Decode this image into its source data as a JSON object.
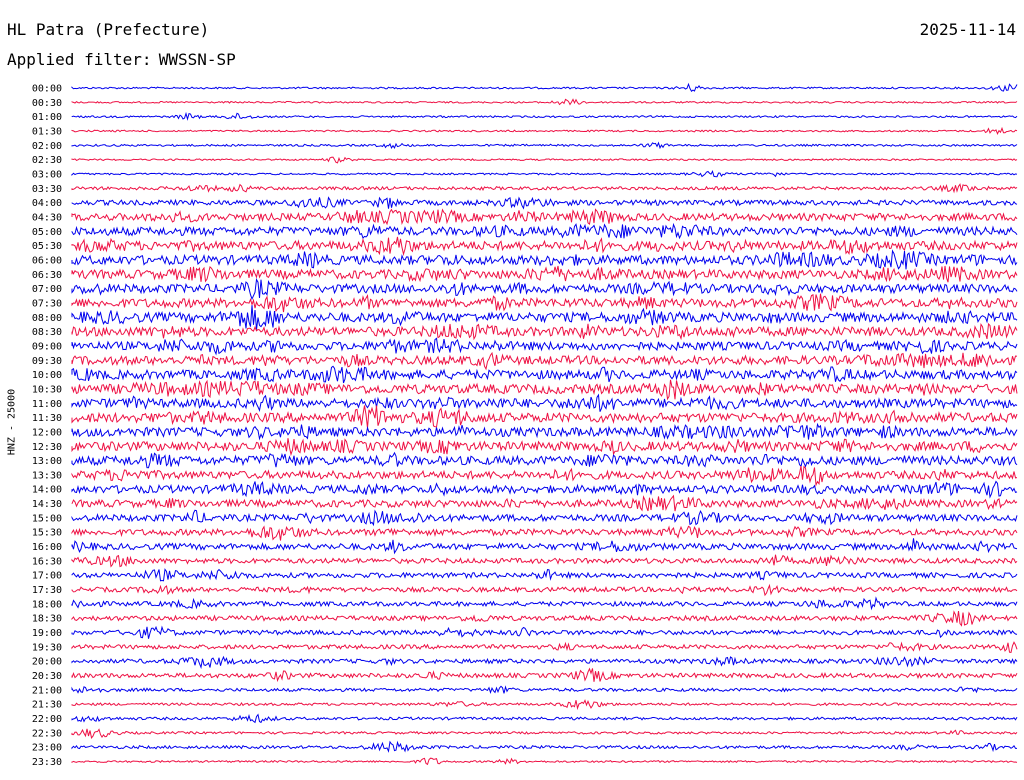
{
  "header": {
    "station_title": "HL Patra (Prefecture)",
    "date": "2025-11-14",
    "filter_label": "Applied filter:",
    "filter_value": "WWSSN-SP"
  },
  "chart_data": {
    "type": "line",
    "title": "HL Patra (Prefecture)",
    "ylabel": "HNZ - 25000",
    "line_colors": [
      "#0000ee",
      "#ee1144"
    ],
    "grid": false,
    "legend": "none",
    "rows": [
      {
        "label": "00:00",
        "activity": 0.05
      },
      {
        "label": "00:30",
        "activity": 0.04
      },
      {
        "label": "01:00",
        "activity": 0.06
      },
      {
        "label": "01:30",
        "activity": 0.04
      },
      {
        "label": "02:00",
        "activity": 0.07
      },
      {
        "label": "02:30",
        "activity": 0.04
      },
      {
        "label": "03:00",
        "activity": 0.05
      },
      {
        "label": "03:30",
        "activity": 0.18
      },
      {
        "label": "04:00",
        "activity": 0.35
      },
      {
        "label": "04:30",
        "activity": 0.55
      },
      {
        "label": "05:00",
        "activity": 0.65
      },
      {
        "label": "05:30",
        "activity": 0.7
      },
      {
        "label": "06:00",
        "activity": 0.72
      },
      {
        "label": "06:30",
        "activity": 0.7
      },
      {
        "label": "07:00",
        "activity": 0.68
      },
      {
        "label": "07:30",
        "activity": 0.7
      },
      {
        "label": "08:00",
        "activity": 0.75
      },
      {
        "label": "08:30",
        "activity": 0.72
      },
      {
        "label": "09:00",
        "activity": 0.65
      },
      {
        "label": "09:30",
        "activity": 0.68
      },
      {
        "label": "10:00",
        "activity": 0.72
      },
      {
        "label": "10:30",
        "activity": 0.75
      },
      {
        "label": "11:00",
        "activity": 0.72
      },
      {
        "label": "11:30",
        "activity": 0.75
      },
      {
        "label": "12:00",
        "activity": 0.72
      },
      {
        "label": "12:30",
        "activity": 0.72
      },
      {
        "label": "13:00",
        "activity": 0.68
      },
      {
        "label": "13:30",
        "activity": 0.6
      },
      {
        "label": "14:00",
        "activity": 0.6
      },
      {
        "label": "14:30",
        "activity": 0.55
      },
      {
        "label": "15:00",
        "activity": 0.5
      },
      {
        "label": "15:30",
        "activity": 0.45
      },
      {
        "label": "16:00",
        "activity": 0.45
      },
      {
        "label": "16:30",
        "activity": 0.35
      },
      {
        "label": "17:00",
        "activity": 0.35
      },
      {
        "label": "17:30",
        "activity": 0.32
      },
      {
        "label": "18:00",
        "activity": 0.3
      },
      {
        "label": "18:30",
        "activity": 0.32
      },
      {
        "label": "19:00",
        "activity": 0.3
      },
      {
        "label": "19:30",
        "activity": 0.28
      },
      {
        "label": "20:00",
        "activity": 0.28
      },
      {
        "label": "20:30",
        "activity": 0.3
      },
      {
        "label": "21:00",
        "activity": 0.18
      },
      {
        "label": "21:30",
        "activity": 0.12
      },
      {
        "label": "22:00",
        "activity": 0.14
      },
      {
        "label": "22:30",
        "activity": 0.1
      },
      {
        "label": "23:00",
        "activity": 0.16
      },
      {
        "label": "23:30",
        "activity": 0.06
      }
    ]
  }
}
